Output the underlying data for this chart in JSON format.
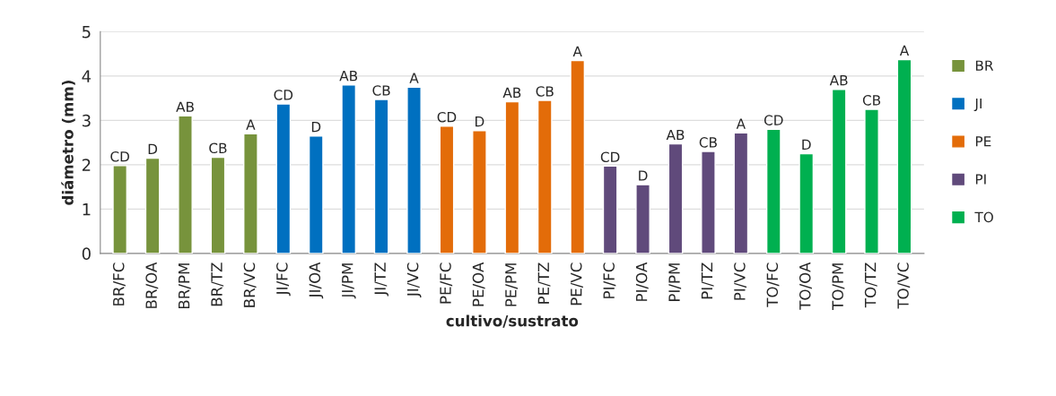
{
  "chart_data": {
    "type": "bar",
    "xlabel": "cultivo/sustrato",
    "ylabel": "diámetro (mm)",
    "categories": [
      "BR/FC",
      "BR/OA",
      "BR/PM",
      "BR/TZ",
      "BR/VC",
      "JI/FC",
      "JI/OA",
      "JI/PM",
      "JI/TZ",
      "JI/VC",
      "PE/FC",
      "PE/OA",
      "PE/PM",
      "PE/TZ",
      "PE/VC",
      "PI/FC",
      "PI/OA",
      "PI/PM",
      "PI/TZ",
      "PI/VC",
      "TO/FC",
      "TO/OA",
      "TO/PM",
      "TO/TZ",
      "TO/VC"
    ],
    "series": [
      {
        "name": "BR",
        "color": "#77933c",
        "values": [
          1.98,
          2.15,
          3.1,
          2.17,
          2.7,
          null,
          null,
          null,
          null,
          null,
          null,
          null,
          null,
          null,
          null,
          null,
          null,
          null,
          null,
          null,
          null,
          null,
          null,
          null,
          null
        ],
        "value_labels": [
          "CD",
          "D",
          "AB",
          "CB",
          "A",
          null,
          null,
          null,
          null,
          null,
          null,
          null,
          null,
          null,
          null,
          null,
          null,
          null,
          null,
          null,
          null,
          null,
          null,
          null,
          null
        ]
      },
      {
        "name": "JI",
        "color": "#0070c0",
        "values": [
          null,
          null,
          null,
          null,
          null,
          3.37,
          2.65,
          3.8,
          3.47,
          3.75,
          null,
          null,
          null,
          null,
          null,
          null,
          null,
          null,
          null,
          null,
          null,
          null,
          null,
          null,
          null
        ],
        "value_labels": [
          null,
          null,
          null,
          null,
          null,
          "CD",
          "D",
          "AB",
          "CB",
          "A",
          null,
          null,
          null,
          null,
          null,
          null,
          null,
          null,
          null,
          null,
          null,
          null,
          null,
          null,
          null
        ]
      },
      {
        "name": "PE",
        "color": "#e36c09",
        "values": [
          null,
          null,
          null,
          null,
          null,
          null,
          null,
          null,
          null,
          null,
          2.87,
          2.77,
          3.42,
          3.45,
          4.35,
          null,
          null,
          null,
          null,
          null,
          null,
          null,
          null,
          null,
          null
        ],
        "value_labels": [
          null,
          null,
          null,
          null,
          null,
          null,
          null,
          null,
          null,
          null,
          "CD",
          "D",
          "AB",
          "CB",
          "A",
          null,
          null,
          null,
          null,
          null,
          null,
          null,
          null,
          null,
          null
        ]
      },
      {
        "name": "PI",
        "color": "#604a7b",
        "values": [
          null,
          null,
          null,
          null,
          null,
          null,
          null,
          null,
          null,
          null,
          null,
          null,
          null,
          null,
          null,
          1.97,
          1.55,
          2.47,
          2.3,
          2.72,
          null,
          null,
          null,
          null,
          null
        ],
        "value_labels": [
          null,
          null,
          null,
          null,
          null,
          null,
          null,
          null,
          null,
          null,
          null,
          null,
          null,
          null,
          null,
          "CD",
          "D",
          "AB",
          "CB",
          "A",
          null,
          null,
          null,
          null,
          null
        ]
      },
      {
        "name": "TO",
        "color": "#00b050",
        "values": [
          null,
          null,
          null,
          null,
          null,
          null,
          null,
          null,
          null,
          null,
          null,
          null,
          null,
          null,
          null,
          null,
          null,
          null,
          null,
          null,
          2.8,
          2.25,
          3.7,
          3.25,
          4.37
        ],
        "value_labels": [
          null,
          null,
          null,
          null,
          null,
          null,
          null,
          null,
          null,
          null,
          null,
          null,
          null,
          null,
          null,
          null,
          null,
          null,
          null,
          null,
          "CD",
          "D",
          "AB",
          "CB",
          "A"
        ]
      }
    ],
    "ylim": [
      0,
      5
    ],
    "yticks": [
      0,
      1,
      2,
      3,
      4,
      5
    ],
    "grid": "y",
    "legend": "right"
  }
}
